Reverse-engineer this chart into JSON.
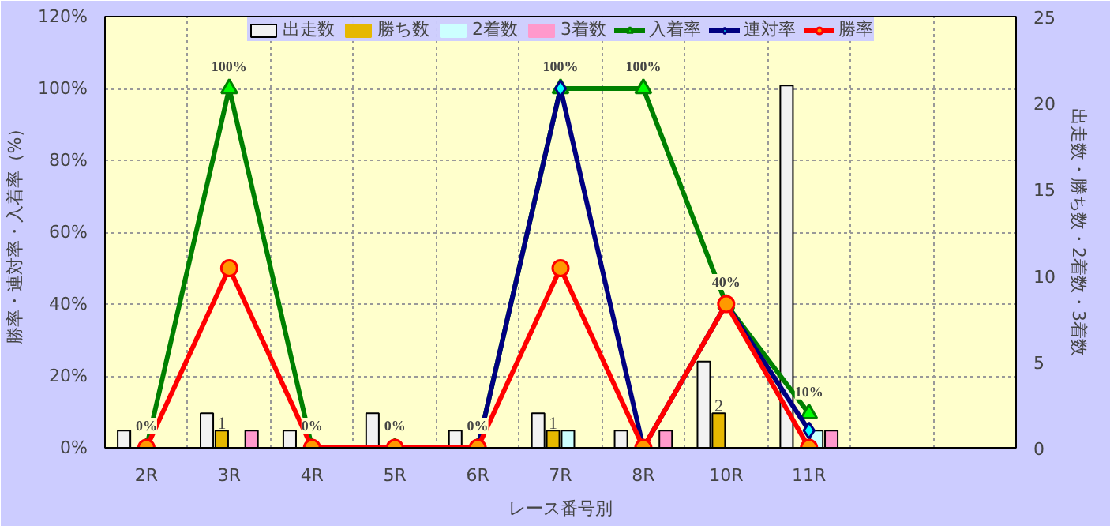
{
  "chart_data": {
    "type": "bar",
    "categories": [
      "2R",
      "3R",
      "4R",
      "5R",
      "6R",
      "7R",
      "8R",
      "10R",
      "11R",
      null,
      null
    ],
    "xlabel": "レース番号別",
    "ylabel": "勝率・連対率・入着率（%）",
    "y2label": "出走数・勝ち数・2着数・3着数",
    "ylim": [
      0,
      120
    ],
    "yticks": [
      {
        "value": 0,
        "label": "0%"
      },
      {
        "value": 20,
        "label": "20%"
      },
      {
        "value": 40,
        "label": "40%"
      },
      {
        "value": 60,
        "label": "60%"
      },
      {
        "value": 80,
        "label": "80%"
      },
      {
        "value": 100,
        "label": "100%"
      },
      {
        "value": 120,
        "label": "120%"
      }
    ],
    "y2lim": [
      0,
      25
    ],
    "y2ticks": [
      0,
      5,
      10,
      15,
      20,
      25
    ],
    "grid": true,
    "legend": "top",
    "series": [
      {
        "name": "出走数",
        "axis": "y2",
        "color": "#f2f2f2",
        "values": [
          1,
          2,
          1,
          2,
          1,
          2,
          1,
          5,
          21,
          null,
          null
        ]
      },
      {
        "name": "勝ち数",
        "axis": "y2",
        "color": "#e6b800",
        "values": [
          0,
          1,
          0,
          0,
          0,
          1,
          0,
          2,
          0,
          null,
          null
        ],
        "value_labels": [
          null,
          "1",
          null,
          null,
          null,
          "1",
          null,
          "2",
          null,
          null,
          null
        ]
      },
      {
        "name": "2着数",
        "axis": "y2",
        "color": "#ccffff",
        "values": [
          0,
          0,
          0,
          0,
          0,
          1,
          0,
          0,
          1,
          null,
          null
        ]
      },
      {
        "name": "3着数",
        "axis": "y2",
        "color": "#ff99cc",
        "values": [
          0,
          1,
          0,
          0,
          0,
          0,
          1,
          0,
          1,
          null,
          null
        ]
      },
      {
        "name": "入着率",
        "type": "line",
        "color": "#008000",
        "marker": "triangle",
        "values": [
          0,
          100,
          0,
          0,
          0,
          100,
          100,
          40,
          9.5,
          null,
          null
        ],
        "value_labels": [
          "0%",
          "100%",
          "0%",
          "0%",
          "0%",
          "100%",
          "100%",
          "40%",
          "10%",
          null,
          null
        ]
      },
      {
        "name": "連対率",
        "type": "line",
        "color": "#000080",
        "marker": "diamond",
        "values": [
          null,
          null,
          0,
          0,
          0,
          100,
          0,
          40,
          4.8,
          null,
          null
        ]
      },
      {
        "name": "勝率",
        "type": "line",
        "color": "#ff0000",
        "marker": "circle",
        "values": [
          0,
          50,
          0,
          0,
          0,
          50,
          0,
          40,
          0,
          null,
          null
        ]
      }
    ]
  }
}
